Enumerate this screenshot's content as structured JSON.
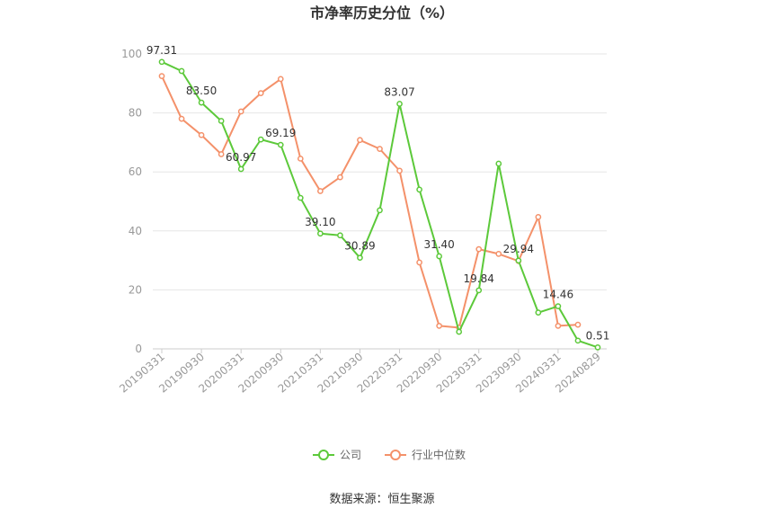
{
  "chart_data": {
    "type": "line",
    "title": "市净率历史分位（%）",
    "source": "数据来源：恒生聚源",
    "ylim": [
      0,
      100
    ],
    "yticks": [
      0,
      20,
      40,
      60,
      80,
      100
    ],
    "grid": true,
    "legend_position": "bottom",
    "x": [
      "20190331",
      "20190630",
      "20190930",
      "20191231",
      "20200331",
      "20200630",
      "20200930",
      "20201231",
      "20210331",
      "20210630",
      "20210930",
      "20211231",
      "20220331",
      "20220630",
      "20220930",
      "20221231",
      "20230331",
      "20230630",
      "20230930",
      "20231231",
      "20240331",
      "20240630",
      "20240829"
    ],
    "xtick_labels": [
      "20190331",
      "20190930",
      "20200331",
      "20200930",
      "20210331",
      "20210930",
      "20220331",
      "20220930",
      "20230331",
      "20230930",
      "20240331",
      "20240829"
    ],
    "series": [
      {
        "name": "公司",
        "color": "#5cc93a",
        "values": [
          97.31,
          94.2,
          83.5,
          77.3,
          60.97,
          71.0,
          69.19,
          51.2,
          39.1,
          38.5,
          30.89,
          47.0,
          83.07,
          54.0,
          31.4,
          5.8,
          19.84,
          62.8,
          29.94,
          12.3,
          14.46,
          2.8,
          0.51
        ],
        "labels": {
          "0": "97.31",
          "2": "83.50",
          "4": "60.97",
          "6": "69.19",
          "8": "39.10",
          "10": "30.89",
          "12": "83.07",
          "14": "31.40",
          "16": "19.84",
          "18": "29.94",
          "20": "14.46",
          "22": "0.51"
        }
      },
      {
        "name": "行业中位数",
        "color": "#f4916a",
        "values": [
          92.5,
          78.0,
          72.5,
          66.0,
          80.5,
          86.7,
          91.5,
          64.5,
          53.5,
          58.2,
          70.8,
          67.8,
          60.4,
          29.3,
          7.8,
          7.2,
          33.8,
          32.2,
          29.8,
          44.7,
          7.8,
          8.2,
          null
        ]
      }
    ]
  }
}
